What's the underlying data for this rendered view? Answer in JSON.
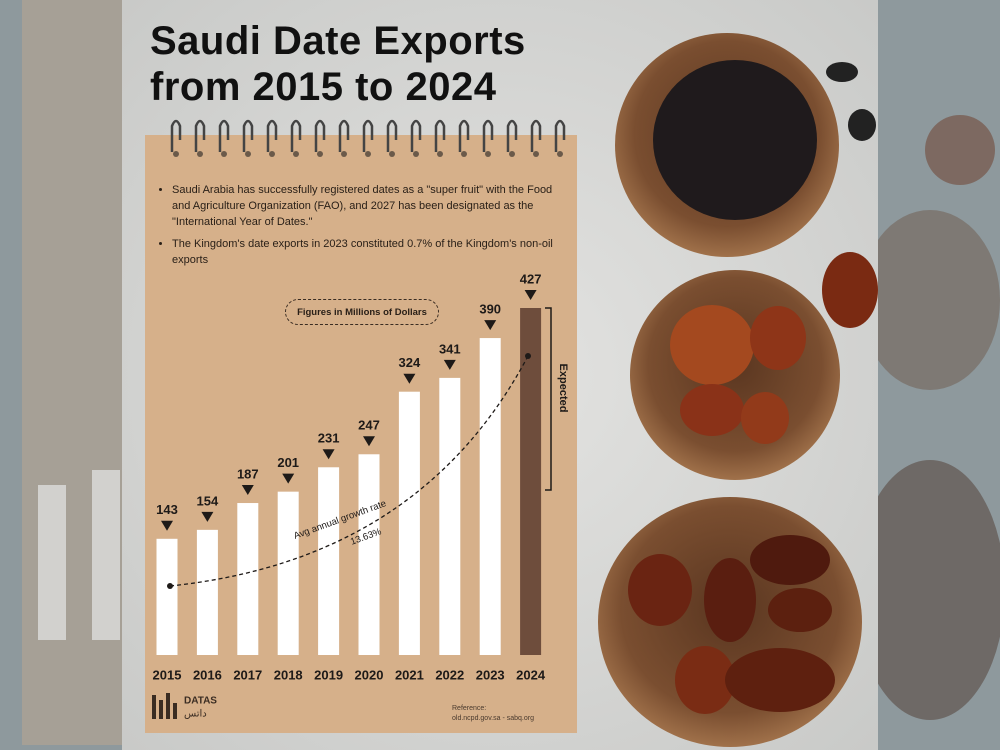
{
  "chart_data": {
    "type": "bar",
    "title": "Saudi Date Exports from 2015 to 2024",
    "bullets": [
      "Saudi Arabia has successfully registered dates as a \"super fruit\" with the Food and Agriculture Organization (FAO), and 2027 has been designated as the \"International Year of Dates.\"",
      "The Kingdom's date exports in 2023 constituted 0.7% of the Kingdom's non-oil exports"
    ],
    "unit_note": "Figures in Millions of Dollars",
    "categories": [
      "2015",
      "2016",
      "2017",
      "2018",
      "2019",
      "2020",
      "2021",
      "2022",
      "2023",
      "2024"
    ],
    "values": [
      143,
      154,
      187,
      201,
      231,
      247,
      324,
      341,
      390,
      427
    ],
    "bar_colors": [
      "#ffffff",
      "#ffffff",
      "#ffffff",
      "#ffffff",
      "#ffffff",
      "#ffffff",
      "#ffffff",
      "#ffffff",
      "#ffffff",
      "#6e4d3c"
    ],
    "expected_label": "Expected",
    "growth_label": "Avg annual growth rate",
    "growth_value": "13.63%",
    "logo": "DATAS",
    "logo_arabic": "داتس",
    "reference_title": "Reference:",
    "reference": "old.ncpd.gov.sa - sabq.org"
  }
}
